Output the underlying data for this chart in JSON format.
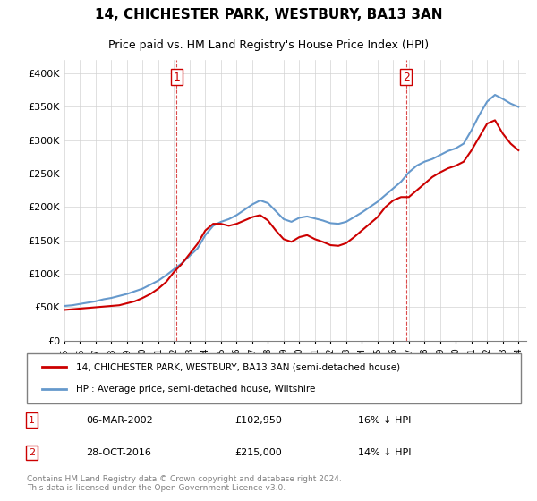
{
  "title": "14, CHICHESTER PARK, WESTBURY, BA13 3AN",
  "subtitle": "Price paid vs. HM Land Registry's House Price Index (HPI)",
  "legend_line1": "14, CHICHESTER PARK, WESTBURY, BA13 3AN (semi-detached house)",
  "legend_line2": "HPI: Average price, semi-detached house, Wiltshire",
  "footnote": "Contains HM Land Registry data © Crown copyright and database right 2024.\nThis data is licensed under the Open Government Licence v3.0.",
  "sale1_label": "1",
  "sale1_date": "06-MAR-2002",
  "sale1_price": "£102,950",
  "sale1_hpi": "16% ↓ HPI",
  "sale2_label": "2",
  "sale2_date": "28-OCT-2016",
  "sale2_price": "£215,000",
  "sale2_hpi": "14% ↓ HPI",
  "red_color": "#cc0000",
  "blue_color": "#6699cc",
  "ylim_min": 0,
  "ylim_max": 420000,
  "sale1_x": 2002.17,
  "sale1_y": 102950,
  "sale2_x": 2016.83,
  "sale2_y": 215000,
  "hpi_years": [
    1995,
    1995.5,
    1996,
    1996.5,
    1997,
    1997.5,
    1998,
    1998.5,
    1999,
    1999.5,
    2000,
    2000.5,
    2001,
    2001.5,
    2002,
    2002.5,
    2003,
    2003.5,
    2004,
    2004.5,
    2005,
    2005.5,
    2006,
    2006.5,
    2007,
    2007.5,
    2008,
    2008.5,
    2009,
    2009.5,
    2010,
    2010.5,
    2011,
    2011.5,
    2012,
    2012.5,
    2013,
    2013.5,
    2014,
    2014.5,
    2015,
    2015.5,
    2016,
    2016.5,
    2017,
    2017.5,
    2018,
    2018.5,
    2019,
    2019.5,
    2020,
    2020.5,
    2021,
    2021.5,
    2022,
    2022.5,
    2023,
    2023.5,
    2024
  ],
  "hpi_values": [
    52000,
    53000,
    55000,
    57000,
    59000,
    62000,
    64000,
    67000,
    70000,
    74000,
    78000,
    84000,
    90000,
    98000,
    107000,
    116000,
    127000,
    138000,
    158000,
    172000,
    178000,
    182000,
    188000,
    196000,
    204000,
    210000,
    206000,
    194000,
    182000,
    178000,
    184000,
    186000,
    183000,
    180000,
    176000,
    175000,
    178000,
    185000,
    192000,
    200000,
    208000,
    218000,
    228000,
    238000,
    252000,
    262000,
    268000,
    272000,
    278000,
    284000,
    288000,
    295000,
    315000,
    338000,
    358000,
    368000,
    362000,
    355000,
    350000
  ],
  "red_years": [
    1995,
    1995.5,
    1996,
    1996.5,
    1997,
    1997.5,
    1998,
    1998.5,
    1999,
    1999.5,
    2000,
    2000.5,
    2001,
    2001.5,
    2002,
    2002.5,
    2003,
    2003.5,
    2004,
    2004.5,
    2005,
    2005.5,
    2006,
    2006.5,
    2007,
    2007.5,
    2008,
    2008.5,
    2009,
    2009.5,
    2010,
    2010.5,
    2011,
    2011.5,
    2012,
    2012.5,
    2013,
    2013.5,
    2014,
    2014.5,
    2015,
    2015.5,
    2016,
    2016.5,
    2017,
    2017.5,
    2018,
    2018.5,
    2019,
    2019.5,
    2020,
    2020.5,
    2021,
    2021.5,
    2022,
    2022.5,
    2023,
    2023.5,
    2024
  ],
  "red_values": [
    46000,
    47000,
    48000,
    49000,
    50000,
    51000,
    52000,
    53000,
    56000,
    59000,
    64000,
    70000,
    78000,
    88000,
    102950,
    115000,
    130000,
    145000,
    165000,
    175000,
    175000,
    172000,
    175000,
    180000,
    185000,
    188000,
    180000,
    165000,
    152000,
    148000,
    155000,
    158000,
    152000,
    148000,
    143000,
    142000,
    146000,
    155000,
    165000,
    175000,
    185000,
    200000,
    210000,
    215000,
    215000,
    225000,
    235000,
    245000,
    252000,
    258000,
    262000,
    268000,
    285000,
    305000,
    325000,
    330000,
    310000,
    295000,
    285000
  ],
  "xticks": [
    1995,
    1996,
    1997,
    1998,
    1999,
    2000,
    2001,
    2002,
    2003,
    2004,
    2005,
    2006,
    2007,
    2008,
    2009,
    2010,
    2011,
    2012,
    2013,
    2014,
    2015,
    2016,
    2017,
    2018,
    2019,
    2020,
    2021,
    2022,
    2023,
    2024
  ],
  "yticks": [
    0,
    50000,
    100000,
    150000,
    200000,
    250000,
    300000,
    350000,
    400000
  ],
  "ytick_labels": [
    "£0",
    "£50K",
    "£100K",
    "£150K",
    "£200K",
    "£250K",
    "£300K",
    "£350K",
    "£400K"
  ]
}
